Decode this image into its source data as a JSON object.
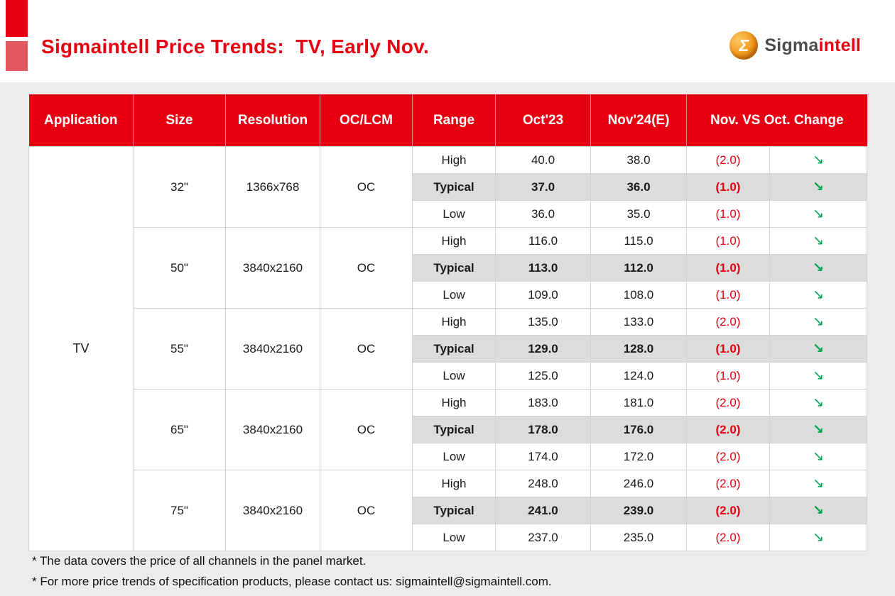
{
  "page": {
    "title": "Sigmaintell Price Trends:  TV, Early Nov.",
    "brand": {
      "name_prefix": "Sigma",
      "name_suffix": "intell",
      "mark_glyph": "Σ"
    }
  },
  "icons": {
    "down_trend": "↘"
  },
  "colors": {
    "accent_red": "#e60012",
    "accent_red_light": "#e2585e",
    "change_red": "#e60012",
    "trend_green": "#00a651",
    "typical_row_bg": "#dcdcdc",
    "header_text": "#ffffff",
    "page_bg": "#ececec"
  },
  "chart_data": {
    "type": "table",
    "title": "Sigmaintell Price Trends: TV, Early Nov.",
    "columns": [
      "Application",
      "Size",
      "Resolution",
      "OC/LCM",
      "Range",
      "Oct'23",
      "Nov'24(E)",
      "Nov. VS Oct. Change"
    ],
    "application": "TV",
    "groups": [
      {
        "size": "32\"",
        "resolution": "1366x768",
        "oc_lcm": "OC",
        "rows": [
          {
            "range": "High",
            "oct": "40.0",
            "nov": "38.0",
            "change": "(2.0)",
            "trend": "down"
          },
          {
            "range": "Typical",
            "oct": "37.0",
            "nov": "36.0",
            "change": "(1.0)",
            "trend": "down"
          },
          {
            "range": "Low",
            "oct": "36.0",
            "nov": "35.0",
            "change": "(1.0)",
            "trend": "down"
          }
        ]
      },
      {
        "size": "50\"",
        "resolution": "3840x2160",
        "oc_lcm": "OC",
        "rows": [
          {
            "range": "High",
            "oct": "116.0",
            "nov": "115.0",
            "change": "(1.0)",
            "trend": "down"
          },
          {
            "range": "Typical",
            "oct": "113.0",
            "nov": "112.0",
            "change": "(1.0)",
            "trend": "down"
          },
          {
            "range": "Low",
            "oct": "109.0",
            "nov": "108.0",
            "change": "(1.0)",
            "trend": "down"
          }
        ]
      },
      {
        "size": "55\"",
        "resolution": "3840x2160",
        "oc_lcm": "OC",
        "rows": [
          {
            "range": "High",
            "oct": "135.0",
            "nov": "133.0",
            "change": "(2.0)",
            "trend": "down"
          },
          {
            "range": "Typical",
            "oct": "129.0",
            "nov": "128.0",
            "change": "(1.0)",
            "trend": "down"
          },
          {
            "range": "Low",
            "oct": "125.0",
            "nov": "124.0",
            "change": "(1.0)",
            "trend": "down"
          }
        ]
      },
      {
        "size": "65\"",
        "resolution": "3840x2160",
        "oc_lcm": "OC",
        "rows": [
          {
            "range": "High",
            "oct": "183.0",
            "nov": "181.0",
            "change": "(2.0)",
            "trend": "down"
          },
          {
            "range": "Typical",
            "oct": "178.0",
            "nov": "176.0",
            "change": "(2.0)",
            "trend": "down"
          },
          {
            "range": "Low",
            "oct": "174.0",
            "nov": "172.0",
            "change": "(2.0)",
            "trend": "down"
          }
        ]
      },
      {
        "size": "75\"",
        "resolution": "3840x2160",
        "oc_lcm": "OC",
        "rows": [
          {
            "range": "High",
            "oct": "248.0",
            "nov": "246.0",
            "change": "(2.0)",
            "trend": "down"
          },
          {
            "range": "Typical",
            "oct": "241.0",
            "nov": "239.0",
            "change": "(2.0)",
            "trend": "down"
          },
          {
            "range": "Low",
            "oct": "237.0",
            "nov": "235.0",
            "change": "(2.0)",
            "trend": "down"
          }
        ]
      }
    ]
  },
  "footnotes": [
    "* The data covers the price of all channels in the panel market.",
    "* For more price trends of specification products, please contact us: sigmaintell@sigmaintell.com."
  ]
}
